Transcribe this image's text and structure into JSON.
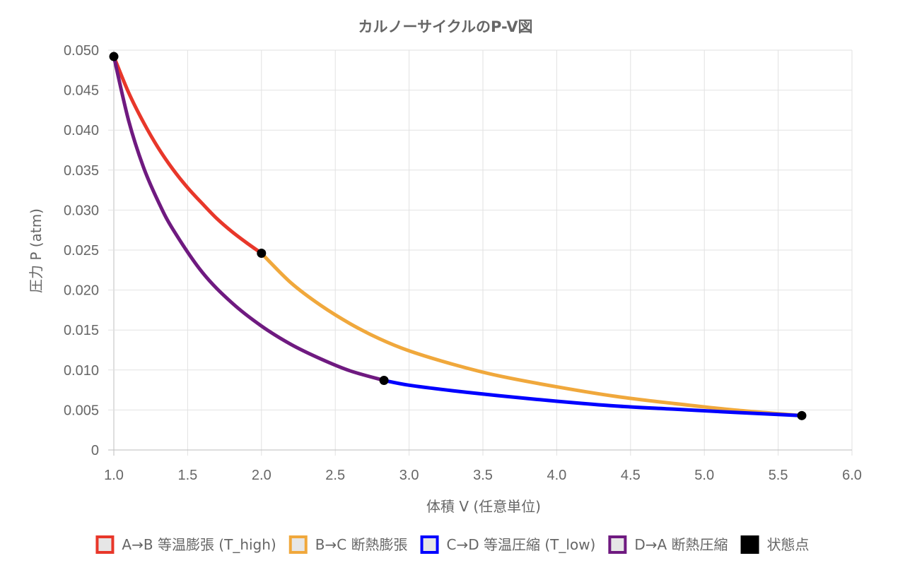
{
  "chart_data": {
    "type": "line",
    "title": "カルノーサイクルのP-V図",
    "xlabel": "体積 V (任意単位)",
    "ylabel": "圧力 P (atm)",
    "xlim": [
      1.0,
      6.0
    ],
    "ylim": [
      0,
      0.05
    ],
    "x_ticks": [
      "1.0",
      "1.5",
      "2.0",
      "2.5",
      "3.0",
      "3.5",
      "4.0",
      "4.5",
      "5.0",
      "5.5",
      "6.0"
    ],
    "y_ticks": [
      "0",
      "0.005",
      "0.010",
      "0.015",
      "0.020",
      "0.025",
      "0.030",
      "0.035",
      "0.040",
      "0.045",
      "0.050"
    ],
    "grid": true,
    "legend_position": "bottom",
    "series": [
      {
        "name": "A→B 等温膨張 (T_high)",
        "color": "#e8372a",
        "points": [
          [
            1.0,
            0.0492
          ],
          [
            1.1,
            0.0447
          ],
          [
            1.2,
            0.041
          ],
          [
            1.3,
            0.0378
          ],
          [
            1.4,
            0.0351
          ],
          [
            1.5,
            0.0328
          ],
          [
            1.6,
            0.0308
          ],
          [
            1.7,
            0.0289
          ],
          [
            1.8,
            0.0273
          ],
          [
            1.9,
            0.0259
          ],
          [
            2.0,
            0.0246
          ]
        ]
      },
      {
        "name": "B→C 断熱膨張",
        "color": "#f0a83c",
        "points": [
          [
            2.0,
            0.0246
          ],
          [
            2.2,
            0.0209
          ],
          [
            2.4,
            0.0181
          ],
          [
            2.6,
            0.0158
          ],
          [
            2.8,
            0.0139
          ],
          [
            3.0,
            0.0124
          ],
          [
            3.3,
            0.0107
          ],
          [
            3.6,
            0.0093
          ],
          [
            4.0,
            0.0079
          ],
          [
            4.4,
            0.0067
          ],
          [
            4.8,
            0.0058
          ],
          [
            5.2,
            0.005
          ],
          [
            5.66,
            0.0043
          ]
        ]
      },
      {
        "name": "C→D 等温圧縮 (T_low)",
        "color": "#0000ff",
        "points": [
          [
            5.66,
            0.0043
          ],
          [
            5.2,
            0.0047
          ],
          [
            4.8,
            0.0051
          ],
          [
            4.4,
            0.0055
          ],
          [
            4.0,
            0.0061
          ],
          [
            3.6,
            0.0068
          ],
          [
            3.3,
            0.0074
          ],
          [
            3.0,
            0.0081
          ],
          [
            2.83,
            0.0087
          ]
        ]
      },
      {
        "name": "D→A 断熱圧縮",
        "color": "#6f1a80",
        "points": [
          [
            2.83,
            0.0087
          ],
          [
            2.6,
            0.0099
          ],
          [
            2.4,
            0.0114
          ],
          [
            2.2,
            0.0132
          ],
          [
            2.0,
            0.0155
          ],
          [
            1.8,
            0.0184
          ],
          [
            1.6,
            0.0222
          ],
          [
            1.4,
            0.0276
          ],
          [
            1.3,
            0.0311
          ],
          [
            1.2,
            0.0354
          ],
          [
            1.1,
            0.0412
          ],
          [
            1.0,
            0.0492
          ]
        ]
      },
      {
        "name": "状態点",
        "color": "#000000",
        "points": [
          [
            1.0,
            0.0492
          ],
          [
            2.0,
            0.0246
          ],
          [
            5.66,
            0.0043
          ],
          [
            2.83,
            0.0087
          ]
        ]
      }
    ]
  }
}
